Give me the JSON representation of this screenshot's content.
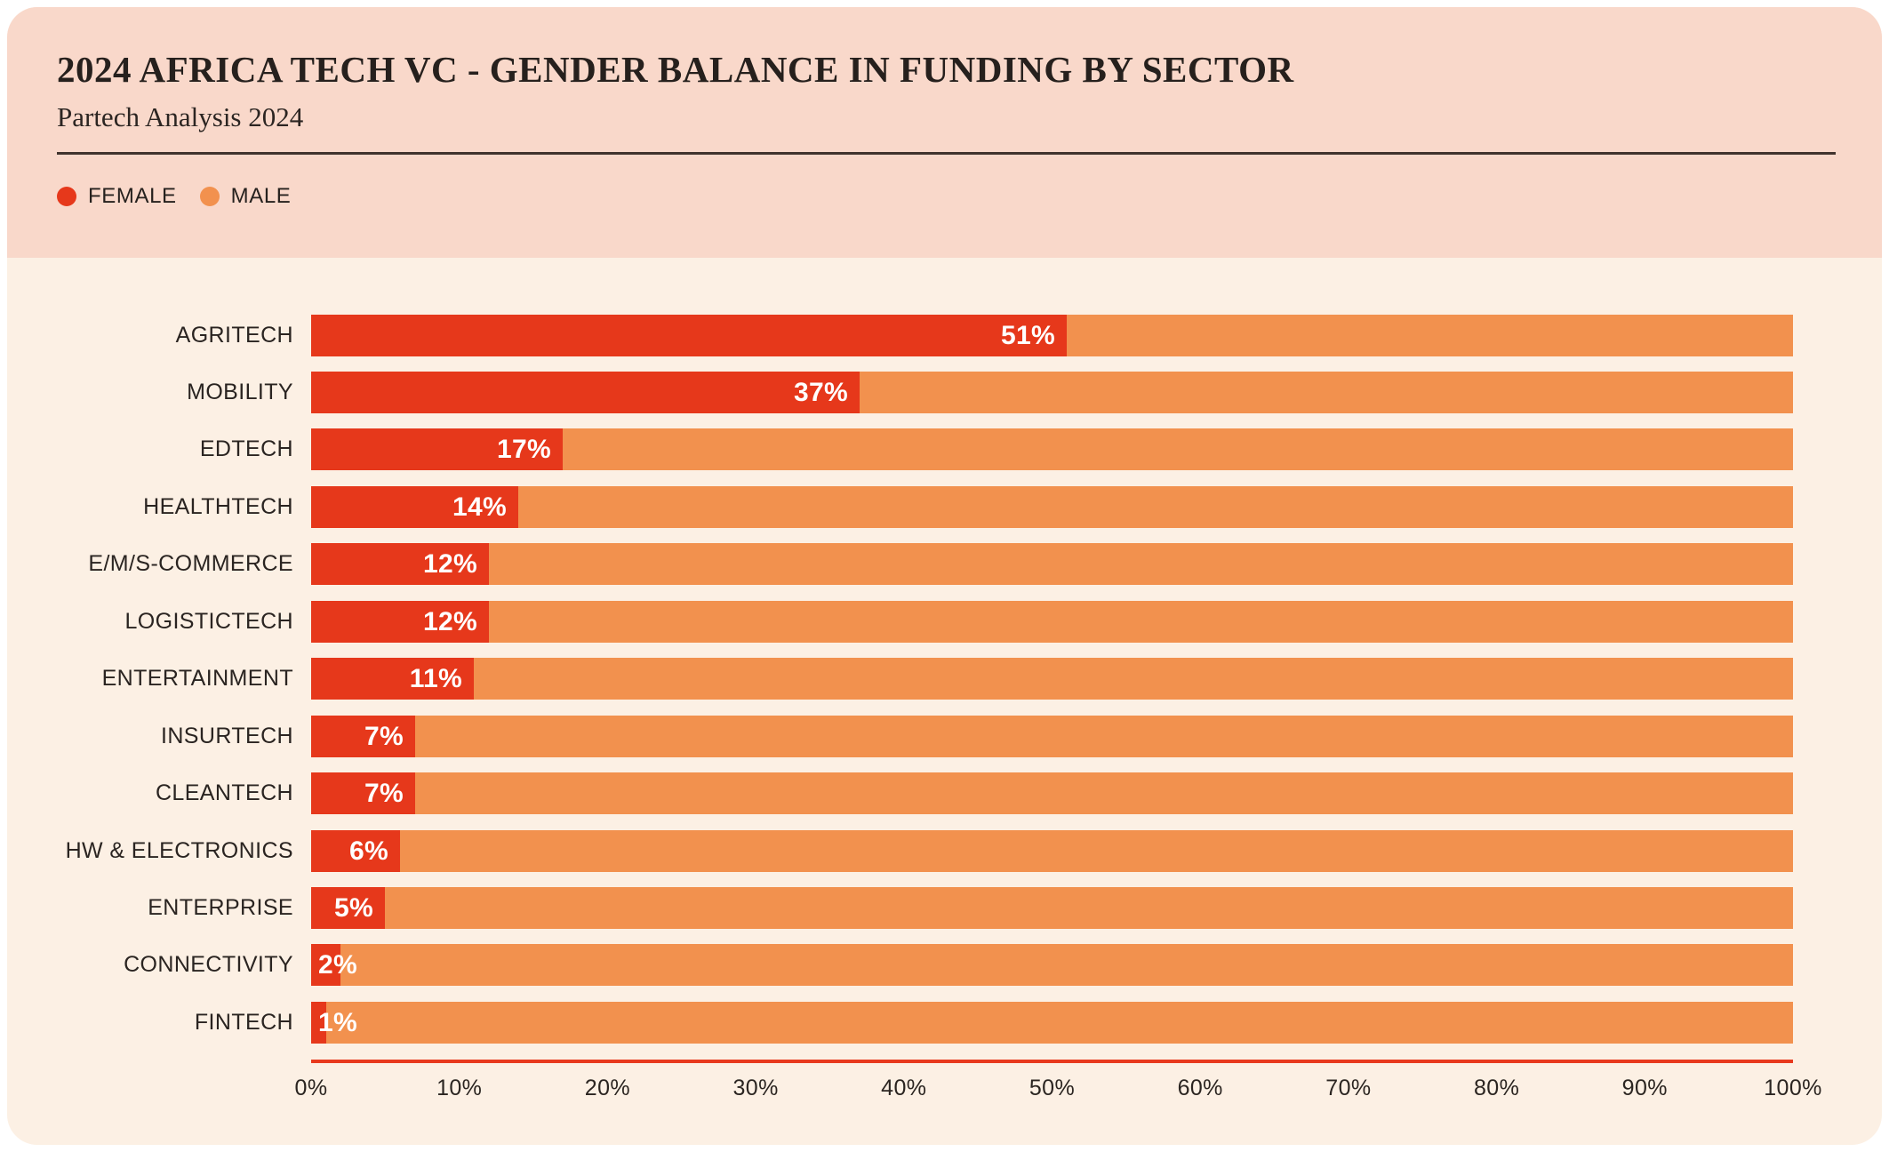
{
  "page": {
    "background": "#ffffff"
  },
  "card": {
    "background": "#fcf0e4",
    "header_background": "#f9d8ca",
    "divider_color": "#41332d"
  },
  "header": {
    "title": "2024 AFRICA TECH VC - GENDER BALANCE IN FUNDING BY SECTOR",
    "subtitle": "Partech Analysis 2024"
  },
  "legend": {
    "items": [
      {
        "label": "FEMALE",
        "color": "#e6381b"
      },
      {
        "label": "MALE",
        "color": "#f2914e"
      }
    ]
  },
  "chart_data": {
    "type": "bar",
    "orientation": "horizontal",
    "stacked": true,
    "title": "2024 AFRICA TECH VC - GENDER BALANCE IN FUNDING BY SECTOR",
    "subtitle": "Partech Analysis 2024",
    "categories": [
      "AGRITECH",
      "MOBILITY",
      "EDTECH",
      "HEALTHTECH",
      "E/M/S-COMMERCE",
      "LOGISTICTECH",
      "ENTERTAINMENT",
      "INSURTECH",
      "CLEANTECH",
      "HW & ELECTRONICS",
      "ENTERPRISE",
      "CONNECTIVITY",
      "FINTECH"
    ],
    "series": [
      {
        "name": "FEMALE",
        "color": "#e6381b",
        "values": [
          51,
          37,
          17,
          14,
          12,
          12,
          11,
          7,
          7,
          6,
          5,
          2,
          1
        ]
      },
      {
        "name": "MALE",
        "color": "#f2914e",
        "values": [
          49,
          63,
          83,
          86,
          88,
          88,
          89,
          93,
          93,
          94,
          95,
          98,
          99
        ]
      }
    ],
    "bar_labels": [
      "51%",
      "37%",
      "17%",
      "14%",
      "12%",
      "12%",
      "11%",
      "7%",
      "7%",
      "6%",
      "5%",
      "2%",
      "1%"
    ],
    "xlabel": "",
    "ylabel": "",
    "xlim": [
      0,
      100
    ],
    "x_ticks": [
      "0%",
      "10%",
      "20%",
      "30%",
      "40%",
      "50%",
      "60%",
      "70%",
      "80%",
      "90%",
      "100%"
    ],
    "grid": false,
    "legend_position": "top-left",
    "axis_line_color": "#e8391d",
    "value_label_color": "#ffffff"
  }
}
